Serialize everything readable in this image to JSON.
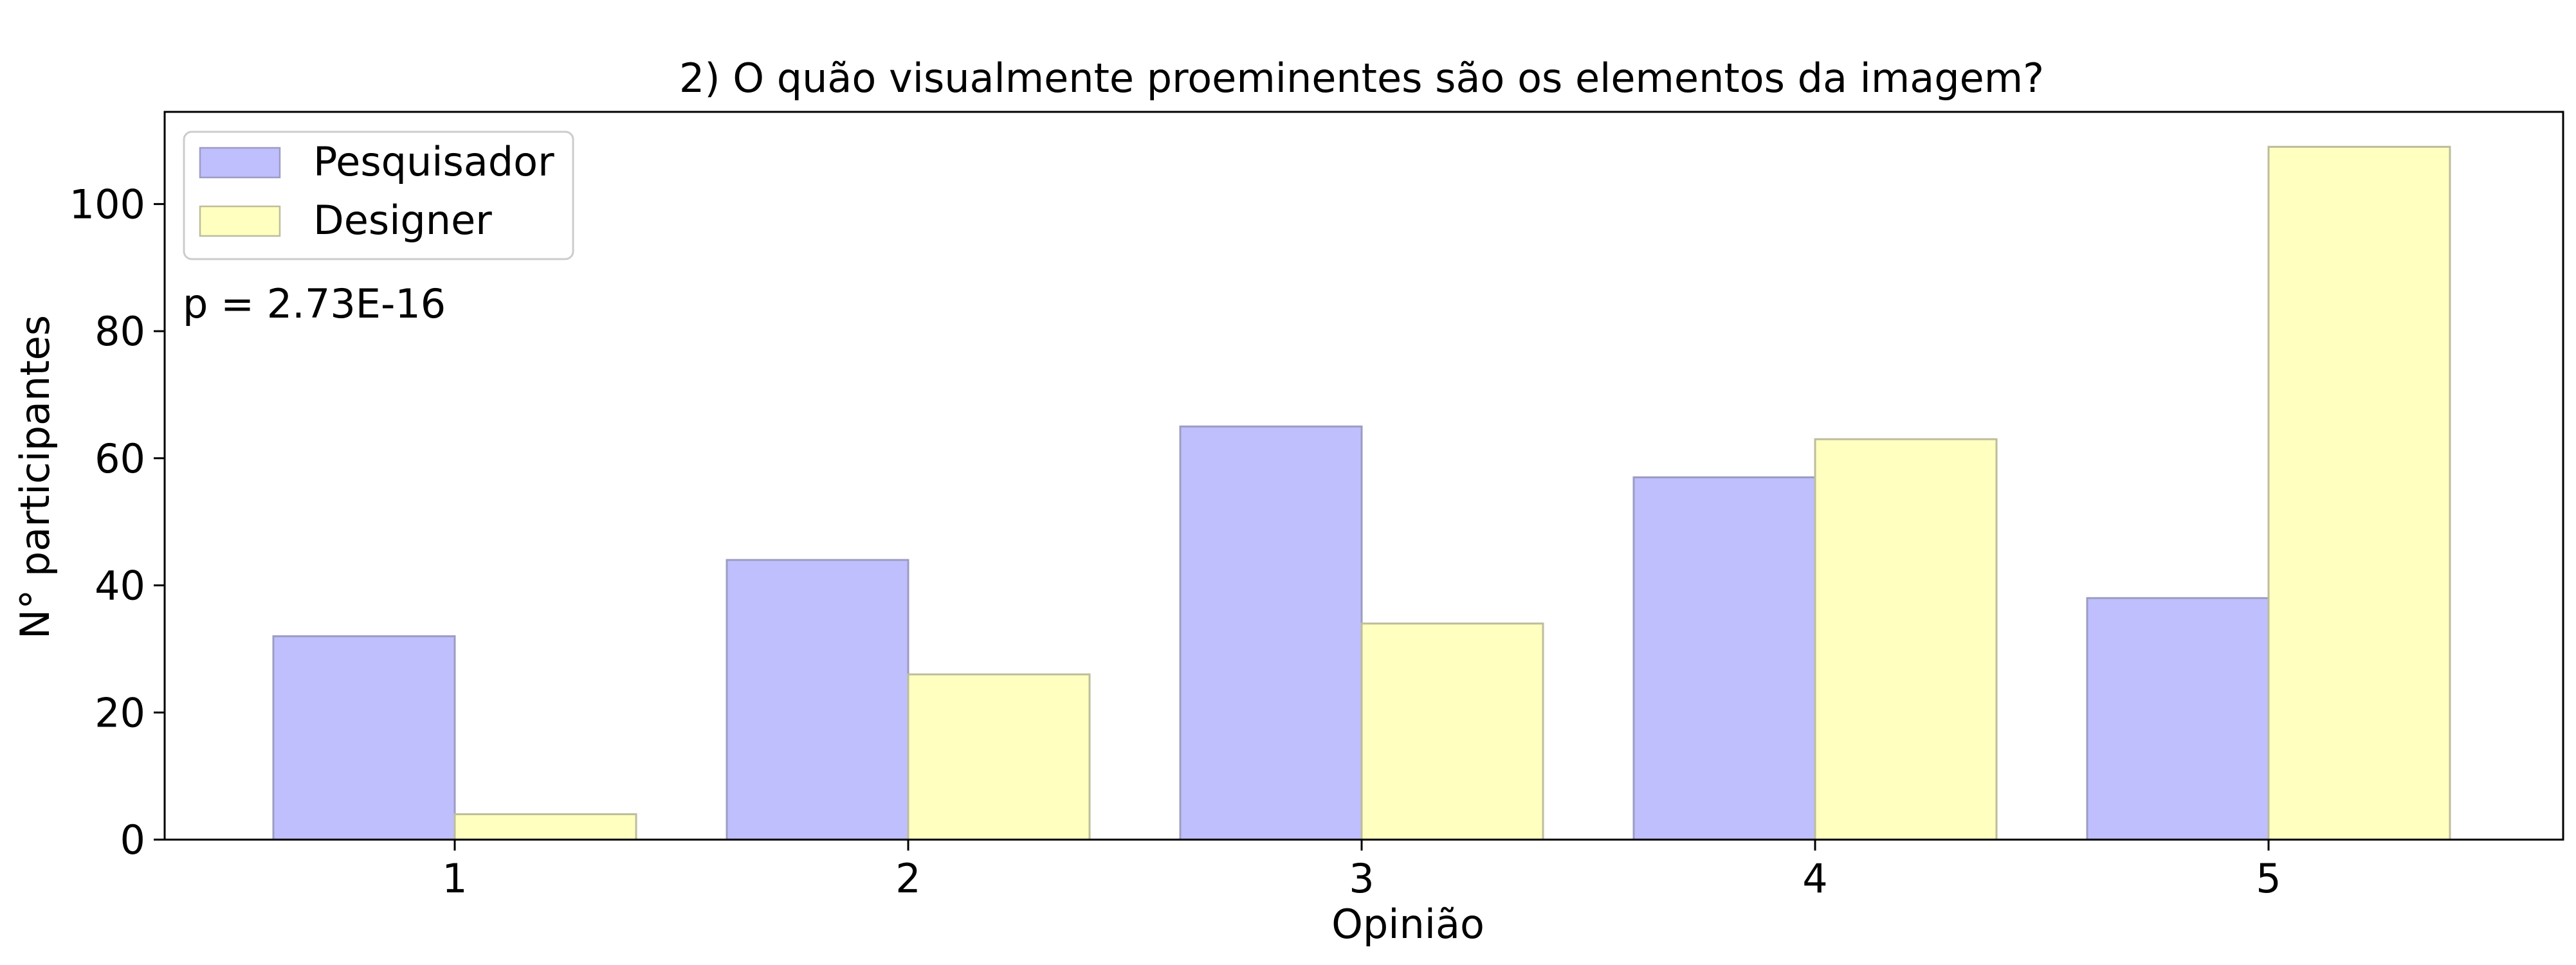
{
  "chart_data": {
    "type": "bar",
    "title": "2) O quão visualmente proeminentes são os elementos da imagem?",
    "xlabel": "Opinião",
    "ylabel": "N° participantes",
    "categories": [
      "1",
      "2",
      "3",
      "4",
      "5"
    ],
    "series": [
      {
        "name": "Pesquisador",
        "values": [
          32,
          44,
          65,
          57,
          38
        ],
        "color": "#bfbffd",
        "edge": "#9c9cc4"
      },
      {
        "name": "Designer",
        "values": [
          4,
          26,
          34,
          63,
          109
        ],
        "color": "#ffffc0",
        "edge": "#bdbd9c"
      }
    ],
    "ylim": [
      0,
      114.5
    ],
    "yticks": [
      0,
      20,
      40,
      60,
      80,
      100
    ],
    "grid": false,
    "legend_position": "top-left",
    "annotation": "p = 2.73E-16"
  }
}
